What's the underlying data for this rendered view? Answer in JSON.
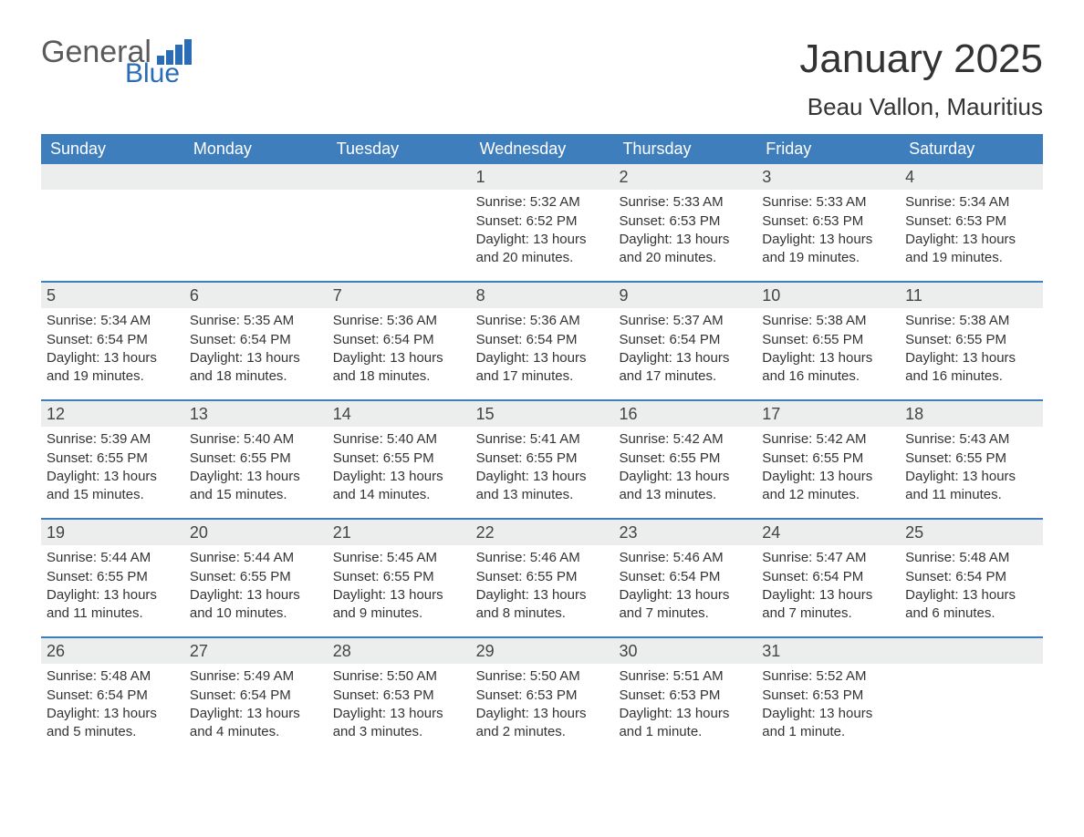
{
  "logo": {
    "line1": "General",
    "line2": "Blue"
  },
  "title": "January 2025",
  "subtitle": "Beau Vallon, Mauritius",
  "colors": {
    "header_bg": "#3f7ebc",
    "header_text": "#ffffff",
    "daynum_bg": "#eceded",
    "accent": "#2a6db6",
    "text": "#333333",
    "logo_gray": "#5a5a5a"
  },
  "day_names": [
    "Sunday",
    "Monday",
    "Tuesday",
    "Wednesday",
    "Thursday",
    "Friday",
    "Saturday"
  ],
  "weeks": [
    [
      {
        "day": null
      },
      {
        "day": null
      },
      {
        "day": null
      },
      {
        "day": "1",
        "sunrise": "Sunrise: 5:32 AM",
        "sunset": "Sunset: 6:52 PM",
        "daylight": "Daylight: 13 hours and 20 minutes."
      },
      {
        "day": "2",
        "sunrise": "Sunrise: 5:33 AM",
        "sunset": "Sunset: 6:53 PM",
        "daylight": "Daylight: 13 hours and 20 minutes."
      },
      {
        "day": "3",
        "sunrise": "Sunrise: 5:33 AM",
        "sunset": "Sunset: 6:53 PM",
        "daylight": "Daylight: 13 hours and 19 minutes."
      },
      {
        "day": "4",
        "sunrise": "Sunrise: 5:34 AM",
        "sunset": "Sunset: 6:53 PM",
        "daylight": "Daylight: 13 hours and 19 minutes."
      }
    ],
    [
      {
        "day": "5",
        "sunrise": "Sunrise: 5:34 AM",
        "sunset": "Sunset: 6:54 PM",
        "daylight": "Daylight: 13 hours and 19 minutes."
      },
      {
        "day": "6",
        "sunrise": "Sunrise: 5:35 AM",
        "sunset": "Sunset: 6:54 PM",
        "daylight": "Daylight: 13 hours and 18 minutes."
      },
      {
        "day": "7",
        "sunrise": "Sunrise: 5:36 AM",
        "sunset": "Sunset: 6:54 PM",
        "daylight": "Daylight: 13 hours and 18 minutes."
      },
      {
        "day": "8",
        "sunrise": "Sunrise: 5:36 AM",
        "sunset": "Sunset: 6:54 PM",
        "daylight": "Daylight: 13 hours and 17 minutes."
      },
      {
        "day": "9",
        "sunrise": "Sunrise: 5:37 AM",
        "sunset": "Sunset: 6:54 PM",
        "daylight": "Daylight: 13 hours and 17 minutes."
      },
      {
        "day": "10",
        "sunrise": "Sunrise: 5:38 AM",
        "sunset": "Sunset: 6:55 PM",
        "daylight": "Daylight: 13 hours and 16 minutes."
      },
      {
        "day": "11",
        "sunrise": "Sunrise: 5:38 AM",
        "sunset": "Sunset: 6:55 PM",
        "daylight": "Daylight: 13 hours and 16 minutes."
      }
    ],
    [
      {
        "day": "12",
        "sunrise": "Sunrise: 5:39 AM",
        "sunset": "Sunset: 6:55 PM",
        "daylight": "Daylight: 13 hours and 15 minutes."
      },
      {
        "day": "13",
        "sunrise": "Sunrise: 5:40 AM",
        "sunset": "Sunset: 6:55 PM",
        "daylight": "Daylight: 13 hours and 15 minutes."
      },
      {
        "day": "14",
        "sunrise": "Sunrise: 5:40 AM",
        "sunset": "Sunset: 6:55 PM",
        "daylight": "Daylight: 13 hours and 14 minutes."
      },
      {
        "day": "15",
        "sunrise": "Sunrise: 5:41 AM",
        "sunset": "Sunset: 6:55 PM",
        "daylight": "Daylight: 13 hours and 13 minutes."
      },
      {
        "day": "16",
        "sunrise": "Sunrise: 5:42 AM",
        "sunset": "Sunset: 6:55 PM",
        "daylight": "Daylight: 13 hours and 13 minutes."
      },
      {
        "day": "17",
        "sunrise": "Sunrise: 5:42 AM",
        "sunset": "Sunset: 6:55 PM",
        "daylight": "Daylight: 13 hours and 12 minutes."
      },
      {
        "day": "18",
        "sunrise": "Sunrise: 5:43 AM",
        "sunset": "Sunset: 6:55 PM",
        "daylight": "Daylight: 13 hours and 11 minutes."
      }
    ],
    [
      {
        "day": "19",
        "sunrise": "Sunrise: 5:44 AM",
        "sunset": "Sunset: 6:55 PM",
        "daylight": "Daylight: 13 hours and 11 minutes."
      },
      {
        "day": "20",
        "sunrise": "Sunrise: 5:44 AM",
        "sunset": "Sunset: 6:55 PM",
        "daylight": "Daylight: 13 hours and 10 minutes."
      },
      {
        "day": "21",
        "sunrise": "Sunrise: 5:45 AM",
        "sunset": "Sunset: 6:55 PM",
        "daylight": "Daylight: 13 hours and 9 minutes."
      },
      {
        "day": "22",
        "sunrise": "Sunrise: 5:46 AM",
        "sunset": "Sunset: 6:55 PM",
        "daylight": "Daylight: 13 hours and 8 minutes."
      },
      {
        "day": "23",
        "sunrise": "Sunrise: 5:46 AM",
        "sunset": "Sunset: 6:54 PM",
        "daylight": "Daylight: 13 hours and 7 minutes."
      },
      {
        "day": "24",
        "sunrise": "Sunrise: 5:47 AM",
        "sunset": "Sunset: 6:54 PM",
        "daylight": "Daylight: 13 hours and 7 minutes."
      },
      {
        "day": "25",
        "sunrise": "Sunrise: 5:48 AM",
        "sunset": "Sunset: 6:54 PM",
        "daylight": "Daylight: 13 hours and 6 minutes."
      }
    ],
    [
      {
        "day": "26",
        "sunrise": "Sunrise: 5:48 AM",
        "sunset": "Sunset: 6:54 PM",
        "daylight": "Daylight: 13 hours and 5 minutes."
      },
      {
        "day": "27",
        "sunrise": "Sunrise: 5:49 AM",
        "sunset": "Sunset: 6:54 PM",
        "daylight": "Daylight: 13 hours and 4 minutes."
      },
      {
        "day": "28",
        "sunrise": "Sunrise: 5:50 AM",
        "sunset": "Sunset: 6:53 PM",
        "daylight": "Daylight: 13 hours and 3 minutes."
      },
      {
        "day": "29",
        "sunrise": "Sunrise: 5:50 AM",
        "sunset": "Sunset: 6:53 PM",
        "daylight": "Daylight: 13 hours and 2 minutes."
      },
      {
        "day": "30",
        "sunrise": "Sunrise: 5:51 AM",
        "sunset": "Sunset: 6:53 PM",
        "daylight": "Daylight: 13 hours and 1 minute."
      },
      {
        "day": "31",
        "sunrise": "Sunrise: 5:52 AM",
        "sunset": "Sunset: 6:53 PM",
        "daylight": "Daylight: 13 hours and 1 minute."
      },
      {
        "day": null
      }
    ]
  ]
}
